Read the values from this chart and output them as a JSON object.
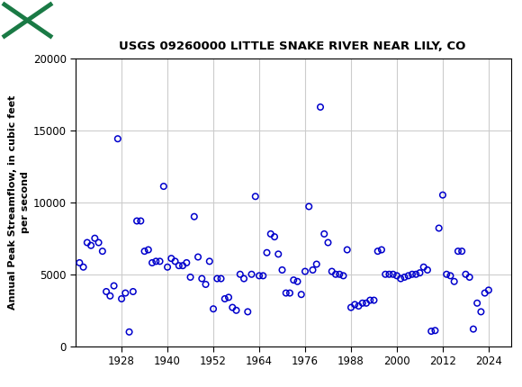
{
  "title": "USGS 09260000 LITTLE SNAKE RIVER NEAR LILY, CO",
  "ylabel": "Annual Peak Streamflow, in cubic feet\nper second",
  "xlim": [
    1916,
    2030
  ],
  "ylim": [
    0,
    20000
  ],
  "yticks": [
    0,
    5000,
    10000,
    15000,
    20000
  ],
  "ytick_labels": [
    "0",
    "5000",
    "10000",
    "15000",
    "20000"
  ],
  "xticks": [
    1928,
    1940,
    1952,
    1964,
    1976,
    1988,
    2000,
    2012,
    2024
  ],
  "header_color": "#1a7a45",
  "marker_color": "#0000cc",
  "background_color": "#ffffff",
  "plot_bg_color": "#ffffff",
  "grid_color": "#cccccc",
  "years": [
    1917,
    1918,
    1919,
    1920,
    1921,
    1922,
    1923,
    1924,
    1925,
    1926,
    1927,
    1928,
    1929,
    1930,
    1931,
    1932,
    1933,
    1934,
    1935,
    1936,
    1937,
    1938,
    1939,
    1940,
    1941,
    1942,
    1943,
    1944,
    1945,
    1946,
    1947,
    1948,
    1949,
    1950,
    1951,
    1952,
    1953,
    1954,
    1955,
    1956,
    1957,
    1958,
    1959,
    1960,
    1961,
    1962,
    1963,
    1964,
    1965,
    1966,
    1967,
    1968,
    1969,
    1970,
    1971,
    1972,
    1973,
    1974,
    1975,
    1976,
    1977,
    1978,
    1979,
    1980,
    1981,
    1982,
    1983,
    1984,
    1985,
    1986,
    1987,
    1988,
    1989,
    1990,
    1991,
    1992,
    1993,
    1994,
    1995,
    1996,
    1997,
    1998,
    1999,
    2000,
    2001,
    2002,
    2003,
    2004,
    2005,
    2006,
    2007,
    2008,
    2009,
    2010,
    2011,
    2012,
    2013,
    2014,
    2015,
    2016,
    2017,
    2018,
    2019,
    2020,
    2021,
    2022,
    2023,
    2024
  ],
  "flows": [
    5800,
    5500,
    7200,
    7000,
    7500,
    7200,
    6600,
    3800,
    3500,
    4200,
    14400,
    3300,
    3700,
    1000,
    3800,
    8700,
    8700,
    6600,
    6700,
    5800,
    5900,
    5900,
    11100,
    5500,
    6100,
    5900,
    5600,
    5600,
    5800,
    4800,
    9000,
    6200,
    4700,
    4300,
    5900,
    2600,
    4700,
    4700,
    3300,
    3400,
    2700,
    2500,
    5000,
    4700,
    2400,
    5000,
    10400,
    4900,
    4900,
    6500,
    7800,
    7600,
    6400,
    5300,
    3700,
    3700,
    4600,
    4500,
    3600,
    5200,
    9700,
    5300,
    5700,
    16600,
    7800,
    7200,
    5200,
    5000,
    5000,
    4900,
    6700,
    2700,
    2900,
    2800,
    3000,
    3000,
    3200,
    3200,
    6600,
    6700,
    5000,
    5000,
    5000,
    4900,
    4700,
    4800,
    4900,
    5000,
    5000,
    5100,
    5500,
    5300,
    1050,
    1100,
    8200,
    10500,
    5000,
    4900,
    4500,
    6600,
    6600,
    5000,
    4800,
    1200,
    3000,
    2400,
    3700,
    3900
  ]
}
